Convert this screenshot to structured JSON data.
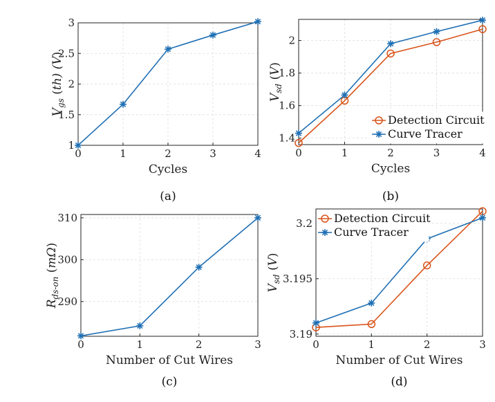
{
  "colors": {
    "blue": "#1f6fb4",
    "orange": "#d95319",
    "grid": "#e3e3e3",
    "axis": "#222222"
  },
  "chart_data": [
    {
      "id": "a",
      "type": "line",
      "caption": "(a)",
      "xlabel": "Cycles",
      "ylabel": "V_gs(th) (V)",
      "x": [
        0,
        1,
        2,
        3,
        4
      ],
      "xlim": [
        0,
        4
      ],
      "ylim": [
        1,
        3
      ],
      "xticks": [
        0,
        1,
        2,
        3,
        4
      ],
      "yticks": [
        1,
        1.5,
        2,
        2.5,
        3
      ],
      "ytick_labels": [
        "1",
        "1.5",
        "2",
        "2.5",
        "3"
      ],
      "grid": true,
      "series": [
        {
          "values": [
            1.0,
            1.67,
            2.57,
            2.8,
            3.02
          ],
          "color": "#1f6fb4",
          "marker": "asterisk"
        }
      ]
    },
    {
      "id": "b",
      "type": "line",
      "caption": "(b)",
      "xlabel": "Cycles",
      "ylabel": "V_sd(V)",
      "x": [
        0,
        1,
        2,
        3,
        4
      ],
      "xlim": [
        0,
        4
      ],
      "ylim": [
        1.36,
        2.13
      ],
      "xticks": [
        0,
        1,
        2,
        3,
        4
      ],
      "yticks": [
        1.4,
        1.6,
        1.8,
        2.0
      ],
      "ytick_labels": [
        "1.4",
        "1.6",
        "1.8",
        "2"
      ],
      "grid": true,
      "legend": "bottom-right",
      "series": [
        {
          "name": "Detection Circuit",
          "values": [
            1.37,
            1.63,
            1.92,
            1.99,
            2.07
          ],
          "color": "#d95319",
          "marker": "circle"
        },
        {
          "name": "Curve Tracer",
          "values": [
            1.43,
            1.665,
            1.98,
            2.055,
            2.125
          ],
          "color": "#1f6fb4",
          "marker": "asterisk"
        }
      ]
    },
    {
      "id": "c",
      "type": "line",
      "caption": "(c)",
      "xlabel": "Number of Cut Wires",
      "ylabel": "R_ds-on (mΩ)",
      "x": [
        0,
        1,
        2,
        3
      ],
      "xlim": [
        0,
        3
      ],
      "ylim": [
        281.7,
        310.8
      ],
      "xticks": [
        0,
        1,
        2,
        3
      ],
      "yticks": [
        290,
        300,
        310
      ],
      "ytick_labels": [
        "290",
        "300",
        "310"
      ],
      "grid": true,
      "series": [
        {
          "values": [
            281.8,
            284.2,
            298.2,
            310.0
          ],
          "color": "#1f6fb4",
          "marker": "asterisk"
        }
      ]
    },
    {
      "id": "d",
      "type": "line",
      "caption": "(d)",
      "xlabel": "Number of Cut Wires",
      "ylabel": "V_sd(V)",
      "x": [
        0,
        1,
        2,
        3
      ],
      "xlim": [
        0,
        3
      ],
      "ylim": [
        3.1898,
        3.2013
      ],
      "xticks": [
        0,
        1,
        2,
        3
      ],
      "yticks": [
        3.19,
        3.195,
        3.2
      ],
      "ytick_labels": [
        "3.19",
        "3.195",
        "3.2"
      ],
      "grid": true,
      "legend": "top-left",
      "series": [
        {
          "name": "Detection Circuit",
          "values": [
            3.1906,
            3.1909,
            3.1962,
            3.2011
          ],
          "color": "#d95319",
          "marker": "circle"
        },
        {
          "name": "Curve Tracer",
          "values": [
            3.191,
            3.1928,
            3.1986,
            3.2005
          ],
          "color": "#1f6fb4",
          "marker": "asterisk"
        }
      ]
    }
  ]
}
